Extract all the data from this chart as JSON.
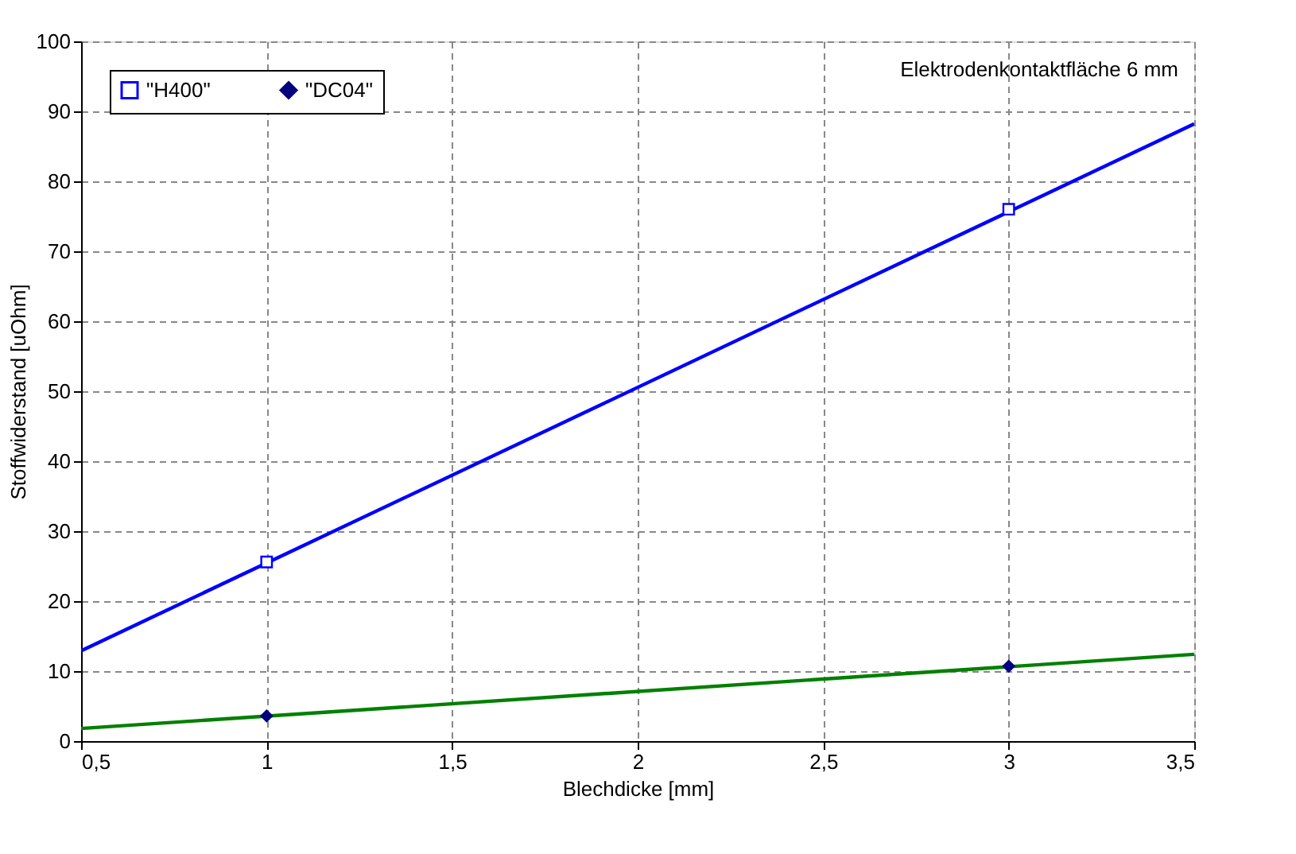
{
  "chart_data": {
    "type": "scatter",
    "xlabel": "Blechdicke [mm]",
    "ylabel": "Stoffwiderstand [uOhm]",
    "annotations": [
      "Elektrodenkontaktfläche 6 mm"
    ],
    "series": [
      {
        "name": "\"H400\"",
        "marker": "square",
        "color": "#0000ff",
        "x": [
          1,
          3
        ],
        "values": [
          25.6,
          76.0
        ]
      },
      {
        "name": "\"DC04\"",
        "marker": "diamond",
        "color": "#000080",
        "x": [
          1,
          3
        ],
        "values": [
          3.6,
          10.7
        ]
      },
      {
        "type": "line",
        "color": "#0000ff",
        "x": [
          0.5,
          3.5
        ],
        "values": [
          12.9,
          88.2
        ]
      },
      {
        "type": "line",
        "color": "#008000",
        "x": [
          0.5,
          3.5
        ],
        "values": [
          1.8,
          12.4
        ]
      }
    ],
    "xlim": [
      0.5,
      3.5
    ],
    "xticks": [
      {
        "value": 0.5,
        "label": "0,5"
      },
      1,
      {
        "value": 1.5,
        "label": "1,5"
      },
      2,
      {
        "value": 2.5,
        "label": "2,5"
      },
      3,
      {
        "value": 3.5,
        "label": "3,5"
      }
    ],
    "ylim": [
      0,
      100
    ],
    "yticks": [
      0,
      10,
      20,
      30,
      40,
      50,
      60,
      70,
      80,
      90,
      100
    ],
    "grid": true,
    "legend": "top left",
    "line_style": "solid"
  }
}
